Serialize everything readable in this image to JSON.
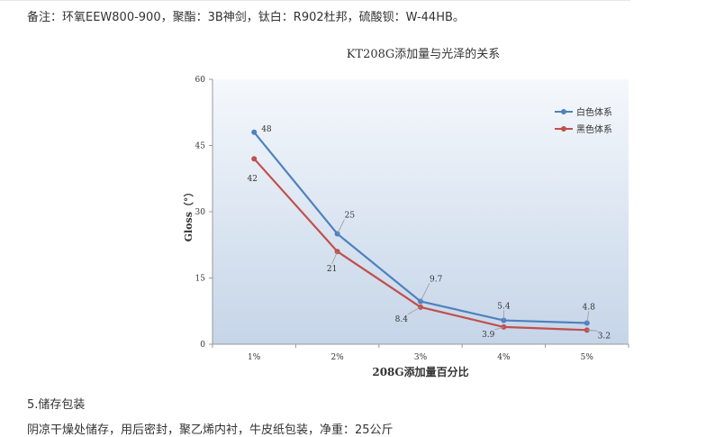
{
  "note_text": "备注：环氧EEW800-900，聚酯：3B神剑，钛白：R902杜邦，硫酸钡：W-44HB。",
  "section": {
    "title": "5.储存包装",
    "body": "阴凉干燥处储存，用后密封，聚乙烯内衬，牛皮纸包装，净重：25公斤"
  },
  "chart_data": {
    "type": "line",
    "title": "KT208G添加量与光泽的关系",
    "xlabel": "208G添加量百分比",
    "ylabel": "Gloss（°）",
    "categories": [
      "1%",
      "2%",
      "3%",
      "4%",
      "5%"
    ],
    "ylim": [
      0,
      60
    ],
    "yticks": [
      0,
      15,
      30,
      45,
      60
    ],
    "grid": false,
    "legend_position": "top-right",
    "series": [
      {
        "name": "白色体系",
        "color": "#4f81bd",
        "values": [
          48,
          25,
          9.7,
          5.4,
          4.8
        ]
      },
      {
        "name": "黑色体系",
        "color": "#c0504d",
        "values": [
          42,
          21,
          8.4,
          3.9,
          3.2
        ]
      }
    ]
  }
}
